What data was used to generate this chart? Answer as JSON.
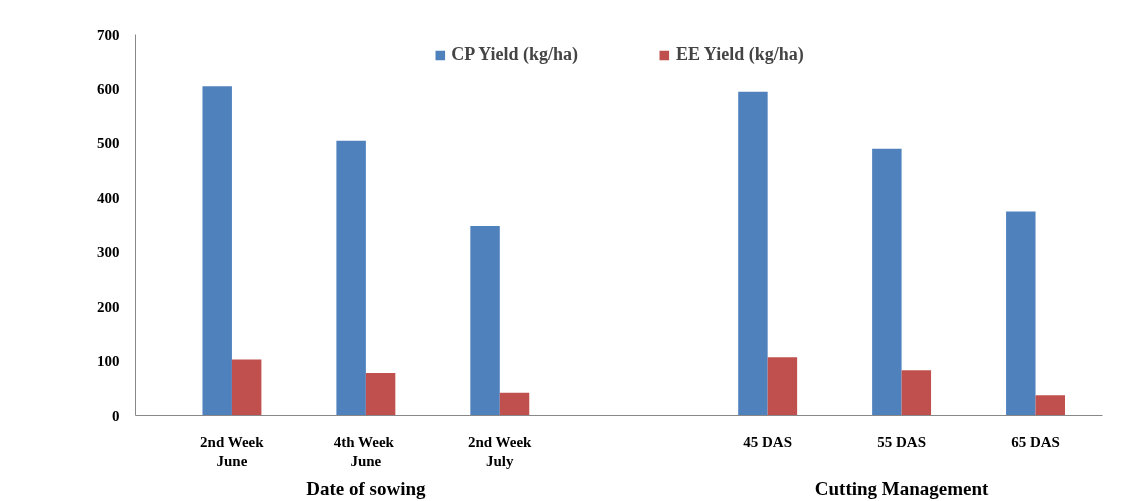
{
  "chart_data": {
    "type": "bar",
    "categories": [
      "2nd Week\nJune",
      "4th  Week\nJune",
      "2nd Week\nJuly",
      null,
      "45 DAS",
      "55 DAS",
      "65 DAS"
    ],
    "series": [
      {
        "name": "CP Yield (kg/ha)",
        "color": "#4f81bd",
        "values": [
          605,
          505,
          348,
          null,
          595,
          490,
          375
        ]
      },
      {
        "name": "EE Yield (kg/ha)",
        "color": "#c0504d",
        "values": [
          103,
          78,
          42,
          null,
          107,
          83,
          37
        ]
      }
    ],
    "ylim": [
      0,
      700
    ],
    "yticks": [
      0,
      100,
      200,
      300,
      400,
      500,
      600,
      700
    ],
    "annotations": [
      "Date of sowing",
      "Cutting Management"
    ],
    "grid": false,
    "legend": "top"
  }
}
